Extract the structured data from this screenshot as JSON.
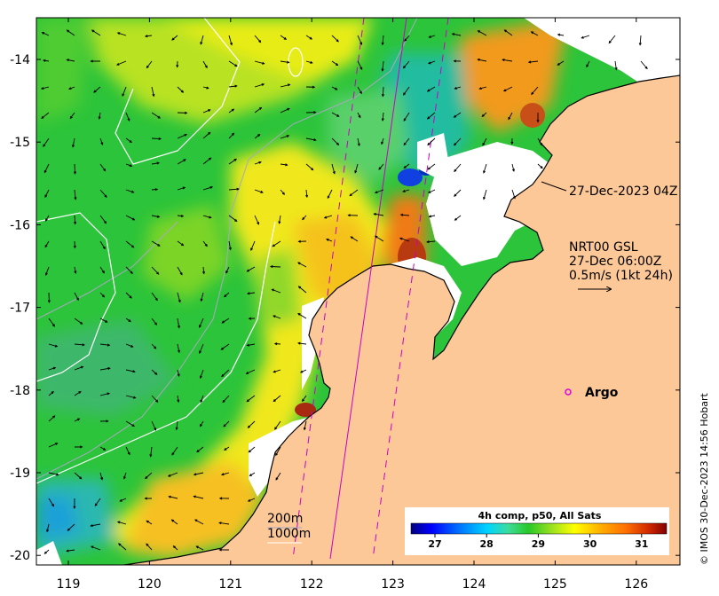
{
  "map": {
    "x_ticks": [
      "119",
      "120",
      "121",
      "122",
      "123",
      "124",
      "125",
      "126"
    ],
    "y_ticks": [
      "-14",
      "-15",
      "-16",
      "-17",
      "-18",
      "-19",
      "-20"
    ],
    "colors": {
      "land": "#fdc897",
      "frame": "#000000",
      "contour_200m": "#b0b0b0",
      "contour_1000m": "#ffffff",
      "track": "#c800c8",
      "argo_marker": "#e000e0"
    }
  },
  "annotations": {
    "pass_time": "27-Dec-2023 04Z",
    "current_source": "NRT00 GSL",
    "current_time": "27-Dec 06:00Z",
    "current_scale": "0.5m/s (1kt 24h)",
    "argo_label": "Argo"
  },
  "legend": {
    "contour_200m": "200m",
    "contour_1000m": "1000m"
  },
  "colorbar": {
    "title": "4h comp, p50, All Sats",
    "tick_labels": [
      "27",
      "28",
      "29",
      "30",
      "31"
    ],
    "colors": [
      "#00007f",
      "#0000ff",
      "#007fff",
      "#00d5ff",
      "#3cdc9c",
      "#28c828",
      "#9ae11e",
      "#ffff00",
      "#ffb000",
      "#ff7000",
      "#d02800",
      "#800000"
    ]
  },
  "credit": "© IMOS 30-Dec-2023 14:56 Hobart"
}
